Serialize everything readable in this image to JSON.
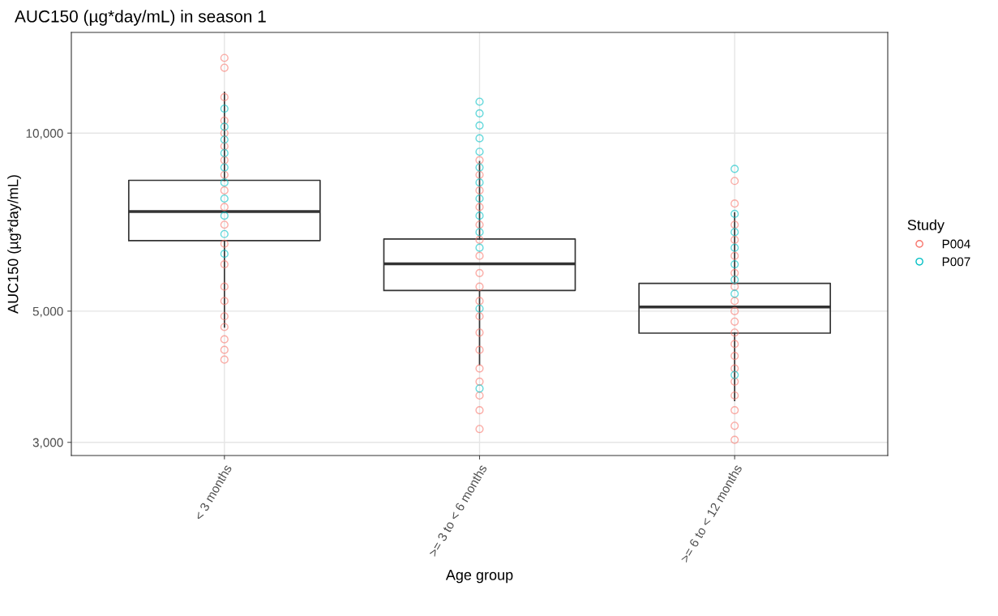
{
  "chart_data": {
    "type": "box",
    "title": "AUC150 (µg*day/mL) in season 1",
    "xlabel": "Age group",
    "ylabel": "AUC150 (µg*day/mL)",
    "legend_title": "Study",
    "categories": [
      "< 3 months",
      ">= 3 to < 6 months",
      ">= 6 to < 12 months"
    ],
    "boxes": [
      {
        "low": 4700,
        "q1": 6580,
        "median": 7370,
        "q3": 8320,
        "high": 11720
      },
      {
        "low": 4060,
        "q1": 5420,
        "median": 6010,
        "q3": 6620,
        "high": 8950
      },
      {
        "low": 3530,
        "q1": 4590,
        "median": 5080,
        "q3": 5570,
        "high": 7330
      }
    ],
    "series": [
      {
        "name": "P004",
        "type": "scatter",
        "color": "#f8766d",
        "x": [
          "< 3 months",
          "< 3 months",
          "< 3 months",
          "< 3 months",
          "< 3 months",
          "< 3 months",
          "< 3 months",
          "< 3 months",
          "< 3 months",
          "< 3 months",
          "< 3 months",
          "< 3 months",
          "< 3 months",
          "< 3 months",
          "< 3 months",
          "< 3 months",
          "< 3 months",
          "< 3 months",
          "< 3 months",
          "< 3 months",
          ">= 3 to < 6 months",
          ">= 3 to < 6 months",
          ">= 3 to < 6 months",
          ">= 3 to < 6 months",
          ">= 3 to < 6 months",
          ">= 3 to < 6 months",
          ">= 3 to < 6 months",
          ">= 3 to < 6 months",
          ">= 3 to < 6 months",
          ">= 3 to < 6 months",
          ">= 3 to < 6 months",
          ">= 3 to < 6 months",
          ">= 3 to < 6 months",
          ">= 3 to < 6 months",
          ">= 3 to < 6 months",
          ">= 3 to < 6 months",
          ">= 3 to < 6 months",
          ">= 3 to < 6 months",
          ">= 6 to < 12 months",
          ">= 6 to < 12 months",
          ">= 6 to < 12 months",
          ">= 6 to < 12 months",
          ">= 6 to < 12 months",
          ">= 6 to < 12 months",
          ">= 6 to < 12 months",
          ">= 6 to < 12 months",
          ">= 6 to < 12 months",
          ">= 6 to < 12 months",
          ">= 6 to < 12 months",
          ">= 6 to < 12 months",
          ">= 6 to < 12 months",
          ">= 6 to < 12 months",
          ">= 6 to < 12 months",
          ">= 6 to < 12 months",
          ">= 6 to < 12 months",
          ">= 6 to < 12 months",
          ">= 6 to < 12 months"
        ],
        "values": [
          13400,
          12900,
          11500,
          10500,
          10000,
          9500,
          9000,
          8500,
          8000,
          7500,
          7000,
          6500,
          6000,
          5500,
          5200,
          4900,
          4700,
          4480,
          4300,
          4140,
          9000,
          8500,
          8000,
          7500,
          7000,
          6600,
          6200,
          5800,
          5500,
          5200,
          4900,
          4600,
          4300,
          4000,
          3800,
          3600,
          3400,
          3160,
          8300,
          7600,
          7000,
          6600,
          6200,
          5800,
          5500,
          5200,
          5000,
          4800,
          4600,
          4400,
          4200,
          4000,
          3800,
          3600,
          3400,
          3200,
          3030
        ]
      },
      {
        "name": "P007",
        "type": "scatter",
        "color": "#00bfc4",
        "x": [
          "< 3 months",
          "< 3 months",
          "< 3 months",
          "< 3 months",
          "< 3 months",
          "< 3 months",
          "< 3 months",
          "< 3 months",
          "< 3 months",
          "< 3 months",
          ">= 3 to < 6 months",
          ">= 3 to < 6 months",
          ">= 3 to < 6 months",
          ">= 3 to < 6 months",
          ">= 3 to < 6 months",
          ">= 3 to < 6 months",
          ">= 3 to < 6 months",
          ">= 3 to < 6 months",
          ">= 3 to < 6 months",
          ">= 3 to < 6 months",
          ">= 3 to < 6 months",
          ">= 3 to < 6 months",
          ">= 3 to < 6 months",
          ">= 6 to < 12 months",
          ">= 6 to < 12 months",
          ">= 6 to < 12 months",
          ">= 6 to < 12 months",
          ">= 6 to < 12 months",
          ">= 6 to < 12 months",
          ">= 6 to < 12 months",
          ">= 6 to < 12 months"
        ],
        "values": [
          11000,
          10250,
          9750,
          9250,
          8750,
          8250,
          7750,
          7250,
          6750,
          6250,
          11300,
          10800,
          10300,
          9800,
          9300,
          8750,
          8250,
          7750,
          7250,
          6800,
          6400,
          5050,
          3700,
          8700,
          7300,
          6800,
          6400,
          6000,
          5650,
          5350,
          3900
        ]
      }
    ],
    "log": true,
    "ylim": [
      2850,
      14800
    ],
    "yticks": [
      {
        "value": 3000,
        "label": "3,000"
      },
      {
        "value": 5000,
        "label": "5,000"
      },
      {
        "value": 10000,
        "label": "10,000"
      }
    ],
    "grid": true,
    "legend": "right",
    "marker": "circle"
  }
}
